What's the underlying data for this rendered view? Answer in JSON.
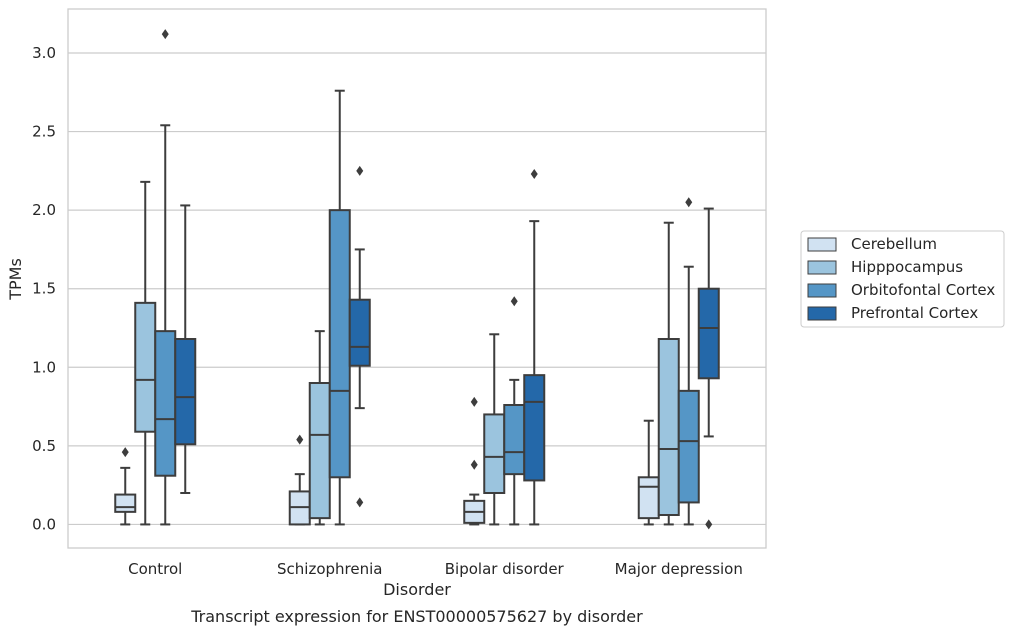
{
  "chart_data": {
    "type": "boxplot",
    "title": "",
    "caption": "Transcript expression for ENST00000575627 by disorder",
    "xlabel": "Disorder",
    "ylabel": "TPMs",
    "ylim": [
      -0.15,
      3.28
    ],
    "yticks": [
      "0.0",
      "0.5",
      "1.0",
      "1.5",
      "2.0",
      "2.5",
      "3.0"
    ],
    "categories": [
      "Control",
      "Schizophrenia",
      "Bipolar disorder",
      "Major depression"
    ],
    "grid": "horizontal",
    "legend_position": "right",
    "series": [
      {
        "name": "Cerebellum",
        "color": "#d1e2f2",
        "boxes": [
          {
            "min": 0.0,
            "q1": 0.08,
            "median": 0.11,
            "q3": 0.19,
            "max": 0.36,
            "outliers": [
              0.46
            ]
          },
          {
            "min": 0.0,
            "q1": 0.0,
            "median": 0.11,
            "q3": 0.21,
            "max": 0.32,
            "outliers": [
              0.54
            ]
          },
          {
            "min": 0.0,
            "q1": 0.01,
            "median": 0.08,
            "q3": 0.15,
            "max": 0.19,
            "outliers": [
              0.38,
              0.78
            ]
          },
          {
            "min": 0.0,
            "q1": 0.04,
            "median": 0.24,
            "q3": 0.3,
            "max": 0.66,
            "outliers": []
          }
        ]
      },
      {
        "name": "Hipppocampus",
        "color": "#9bc4de",
        "boxes": [
          {
            "min": 0.0,
            "q1": 0.59,
            "median": 0.92,
            "q3": 1.41,
            "max": 2.18,
            "outliers": []
          },
          {
            "min": 0.0,
            "q1": 0.04,
            "median": 0.57,
            "q3": 0.9,
            "max": 1.23,
            "outliers": []
          },
          {
            "min": 0.0,
            "q1": 0.2,
            "median": 0.43,
            "q3": 0.7,
            "max": 1.21,
            "outliers": []
          },
          {
            "min": 0.0,
            "q1": 0.06,
            "median": 0.48,
            "q3": 1.18,
            "max": 1.92,
            "outliers": []
          }
        ]
      },
      {
        "name": "Orbitofontal Cortex",
        "color": "#5596c6",
        "boxes": [
          {
            "min": 0.0,
            "q1": 0.31,
            "median": 0.67,
            "q3": 1.23,
            "max": 2.54,
            "outliers": [
              3.12
            ]
          },
          {
            "min": 0.0,
            "q1": 0.3,
            "median": 0.85,
            "q3": 2.0,
            "max": 2.76,
            "outliers": []
          },
          {
            "min": 0.0,
            "q1": 0.32,
            "median": 0.46,
            "q3": 0.76,
            "max": 0.92,
            "outliers": [
              1.42
            ]
          },
          {
            "min": 0.0,
            "q1": 0.14,
            "median": 0.53,
            "q3": 0.85,
            "max": 1.64,
            "outliers": [
              2.05
            ]
          }
        ]
      },
      {
        "name": "Prefrontal Cortex",
        "color": "#2468a9",
        "boxes": [
          {
            "min": 0.2,
            "q1": 0.51,
            "median": 0.81,
            "q3": 1.18,
            "max": 2.03,
            "outliers": []
          },
          {
            "min": 0.74,
            "q1": 1.01,
            "median": 1.13,
            "q3": 1.43,
            "max": 1.75,
            "outliers": [
              0.14,
              2.25
            ]
          },
          {
            "min": 0.0,
            "q1": 0.28,
            "median": 0.78,
            "q3": 0.95,
            "max": 1.93,
            "outliers": [
              2.23
            ]
          },
          {
            "min": 0.56,
            "q1": 0.93,
            "median": 1.25,
            "q3": 1.5,
            "max": 2.01,
            "outliers": [
              0.0
            ]
          }
        ]
      }
    ]
  }
}
